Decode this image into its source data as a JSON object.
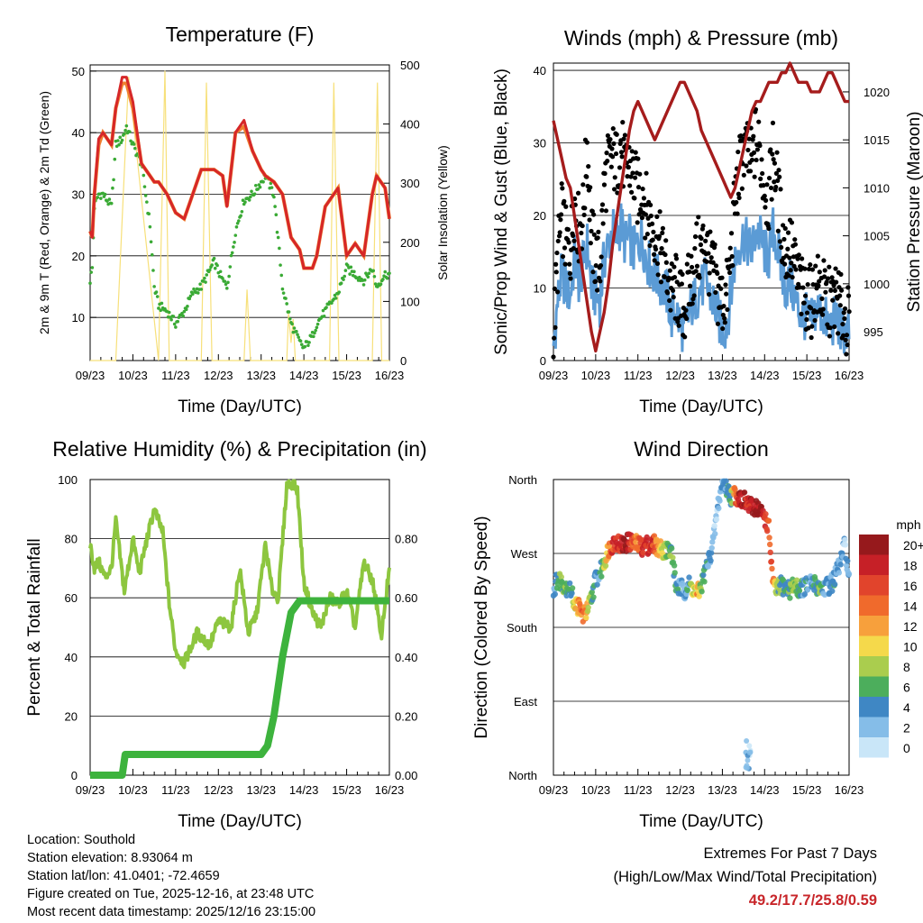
{
  "colors": {
    "temp2m": "#d62728",
    "temp9m": "#f08030",
    "dewpoint": "#3aaa35",
    "solar": "#f7e07a",
    "wind": "#5b9bd5",
    "gust": "#000000",
    "pressure": "#a51c1c",
    "rh": "#8dc63f",
    "precip": "#3db33d",
    "extreme": "#c8262a"
  },
  "days": [
    "09/23",
    "10/23",
    "11/23",
    "12/23",
    "13/23",
    "14/23",
    "15/23",
    "16/23"
  ],
  "chart_data": [
    {
      "id": "temperature",
      "type": "line",
      "title": "Temperature (F)",
      "xlabel": "Time (Day/UTC)",
      "ylabel": "2m & 9m T (Red, Orange) & 2m Td (Green)",
      "ylabel_right": "Solar Insolation (Yellow)",
      "ylim": [
        3,
        51
      ],
      "ylim_right": [
        0,
        500
      ],
      "yticks": [
        10,
        20,
        30,
        40,
        50
      ],
      "yticks_right": [
        0,
        100,
        200,
        300,
        400,
        500
      ],
      "x": [
        0.0,
        0.05,
        0.1,
        0.2,
        0.3,
        0.5,
        0.6,
        0.75,
        0.85,
        1.0,
        1.2,
        1.4,
        1.5,
        1.6,
        1.8,
        2.0,
        2.2,
        2.4,
        2.6,
        2.9,
        3.1,
        3.2,
        3.4,
        3.6,
        3.8,
        4.0,
        4.1,
        4.3,
        4.5,
        4.7,
        4.9,
        5.0,
        5.2,
        5.3,
        5.5,
        5.8,
        6.0,
        6.2,
        6.4,
        6.6,
        6.7,
        6.9,
        7.0
      ],
      "series": [
        {
          "name": "2m T",
          "values": [
            24,
            23,
            30,
            39,
            40,
            38,
            44,
            49,
            49,
            45,
            35,
            33,
            32,
            32,
            30,
            27,
            26,
            30,
            34,
            34,
            33,
            28,
            40,
            42,
            37,
            34,
            33,
            32,
            30,
            23,
            21,
            18,
            18,
            20,
            28,
            31,
            20,
            22,
            20,
            30,
            33,
            31,
            26
          ]
        },
        {
          "name": "9m T",
          "values": [
            24,
            23,
            30,
            38,
            40,
            38,
            44,
            48,
            48,
            44,
            35,
            33,
            32,
            32,
            30,
            27,
            26,
            30,
            34,
            34,
            33,
            28,
            40,
            41,
            37,
            34,
            33,
            32,
            30,
            23,
            21,
            18,
            18,
            20,
            28,
            31,
            20,
            22,
            20,
            30,
            33,
            31,
            26
          ]
        },
        {
          "name": "2m Td",
          "values": [
            16,
            18,
            28,
            30,
            30,
            28,
            38,
            39,
            41,
            38,
            35,
            25,
            15,
            12,
            11,
            9,
            11,
            14,
            15,
            19,
            16,
            15,
            24,
            29,
            30,
            32,
            33,
            30,
            15,
            9,
            6,
            5,
            7,
            9,
            11,
            14,
            18,
            17,
            16,
            18,
            15,
            17,
            17
          ]
        },
        {
          "name": "Solar",
          "x": [
            0.0,
            0.6,
            0.9,
            1.6,
            1.75,
            1.85,
            2.0,
            2.6,
            2.72,
            2.85,
            3.6,
            3.67,
            3.75,
            4.6,
            4.64,
            4.7,
            4.75,
            4.8,
            5.6,
            5.7,
            5.82,
            6.6,
            6.72,
            6.82,
            7.0
          ],
          "values": [
            0,
            0,
            480,
            0,
            490,
            0,
            0,
            0,
            470,
            0,
            0,
            120,
            0,
            0,
            80,
            30,
            70,
            0,
            0,
            470,
            0,
            0,
            470,
            0,
            0
          ]
        }
      ]
    },
    {
      "id": "winds",
      "type": "scatter",
      "title": "Winds (mph) & Pressure (mb)",
      "xlabel": "Time (Day/UTC)",
      "ylabel": "Sonic/Prop Wind & Gust (Blue, Black)",
      "ylabel_right": "Station Pressure (Maroon)",
      "ylim": [
        0,
        41
      ],
      "ylim_right": [
        992,
        1023
      ],
      "yticks": [
        0,
        10,
        20,
        30,
        40
      ],
      "yticks_right": [
        995,
        1000,
        1005,
        1010,
        1015,
        1020
      ],
      "x": [
        0.0,
        0.1,
        0.2,
        0.3,
        0.4,
        0.5,
        0.6,
        0.7,
        0.8,
        0.9,
        1.0,
        1.1,
        1.2,
        1.3,
        1.4,
        1.5,
        1.6,
        1.7,
        1.8,
        1.9,
        2.0,
        2.1,
        2.2,
        2.3,
        2.4,
        2.5,
        2.6,
        2.7,
        2.8,
        2.9,
        3.0,
        3.1,
        3.2,
        3.3,
        3.4,
        3.5,
        3.6,
        3.7,
        3.8,
        3.9,
        4.0,
        4.1,
        4.2,
        4.3,
        4.4,
        4.5,
        4.6,
        4.7,
        4.8,
        4.9,
        5.0,
        5.1,
        5.2,
        5.3,
        5.4,
        5.5,
        5.6,
        5.7,
        5.8,
        5.9,
        6.0,
        6.1,
        6.2,
        6.3,
        6.4,
        6.5,
        6.6,
        6.7,
        6.8,
        6.9,
        7.0
      ],
      "series": [
        {
          "name": "Wind",
          "values": [
            2,
            8,
            12,
            10,
            9,
            14,
            11,
            13,
            16,
            10,
            9,
            8,
            14,
            16,
            18,
            17,
            19,
            16,
            17,
            15,
            16,
            17,
            14,
            13,
            12,
            11,
            10,
            9,
            6,
            7,
            5,
            4,
            6,
            8,
            9,
            10,
            11,
            9,
            8,
            6,
            4,
            5,
            9,
            14,
            16,
            17,
            16,
            15,
            18,
            17,
            15,
            14,
            18,
            16,
            12,
            10,
            11,
            9,
            7,
            6,
            6,
            5,
            7,
            7,
            6,
            5,
            5,
            6,
            4,
            4,
            4
          ]
        },
        {
          "name": "Gust",
          "values": [
            3,
            14,
            20,
            16,
            15,
            22,
            18,
            20,
            30,
            17,
            14,
            13,
            24,
            27,
            28,
            27,
            30,
            26,
            27,
            25,
            23,
            24,
            21,
            19,
            18,
            16,
            14,
            12,
            9,
            10,
            8,
            7,
            10,
            12,
            15,
            15,
            17,
            13,
            12,
            9,
            8,
            9,
            14,
            22,
            26,
            29,
            28,
            27,
            31,
            28,
            24,
            22,
            29,
            24,
            18,
            15,
            16,
            13,
            11,
            9,
            9,
            8,
            10,
            10,
            9,
            8,
            8,
            9,
            7,
            6,
            5
          ]
        },
        {
          "name": "Pressure",
          "values": [
            1017,
            1015,
            1013,
            1011,
            1010,
            1007,
            1004,
            1001,
            998,
            995,
            993,
            995,
            997,
            1000,
            1004,
            1007,
            1010,
            1013,
            1016,
            1018,
            1019,
            1018,
            1017,
            1016,
            1015,
            1016,
            1017,
            1018,
            1019,
            1020,
            1021,
            1021,
            1020,
            1019,
            1018,
            1016,
            1015,
            1014,
            1013,
            1012,
            1011,
            1010,
            1009,
            1010,
            1012,
            1014,
            1016,
            1018,
            1019,
            1019,
            1020,
            1021,
            1021,
            1021,
            1022,
            1022,
            1023,
            1022,
            1021,
            1021,
            1021,
            1020,
            1020,
            1020,
            1021,
            1022,
            1022,
            1021,
            1020,
            1019,
            1019
          ]
        }
      ]
    },
    {
      "id": "humidity",
      "type": "line",
      "title": "Relative Humidity (%) & Precipitation (in)",
      "xlabel": "Time (Day/UTC)",
      "ylabel": "Percent & Total Rainfall",
      "ylim": [
        0,
        100
      ],
      "ylim_right": [
        0,
        1.0
      ],
      "yticks": [
        0,
        20,
        40,
        60,
        80,
        100
      ],
      "yticks_right": [
        0.0,
        0.2,
        0.4,
        0.6,
        0.8
      ],
      "ytick_labels_right": [
        "0.00",
        "0.20",
        "0.40",
        "0.60",
        "0.80"
      ],
      "x": [
        0.0,
        0.1,
        0.2,
        0.35,
        0.5,
        0.6,
        0.8,
        1.0,
        1.15,
        1.3,
        1.5,
        1.7,
        1.85,
        2.0,
        2.2,
        2.5,
        2.8,
        3.0,
        3.3,
        3.5,
        3.7,
        3.9,
        4.1,
        4.25,
        4.4,
        4.6,
        4.75,
        4.85,
        5.0,
        5.2,
        5.4,
        5.6,
        5.8,
        6.0,
        6.2,
        6.4,
        6.6,
        6.7,
        6.8,
        7.0
      ],
      "series": [
        {
          "name": "Relative Humidity",
          "values": [
            78,
            70,
            72,
            67,
            70,
            86,
            62,
            80,
            68,
            78,
            90,
            82,
            58,
            42,
            38,
            48,
            44,
            52,
            50,
            70,
            48,
            55,
            78,
            63,
            60,
            98,
            99,
            96,
            65,
            55,
            50,
            60,
            58,
            62,
            50,
            72,
            66,
            58,
            46,
            70
          ]
        },
        {
          "name": "Total Precipitation",
          "x": [
            0,
            0.75,
            0.82,
            2.0,
            3.0,
            4.0,
            4.15,
            4.3,
            4.5,
            4.7,
            4.9,
            7.0
          ],
          "values": [
            0.0,
            0.0,
            0.07,
            0.07,
            0.07,
            0.07,
            0.1,
            0.2,
            0.4,
            0.55,
            0.59,
            0.59
          ]
        }
      ]
    },
    {
      "id": "wind_direction",
      "type": "scatter",
      "title": "Wind Direction",
      "xlabel": "Time (Day/UTC)",
      "ylabel": "Direction (Colored By Speed)",
      "yticks": [
        "North",
        "West",
        "South",
        "East",
        "North"
      ],
      "colorbar_title": "mph",
      "colorbar_labels": [
        "20+",
        "18",
        "16",
        "14",
        "12",
        "10",
        "8",
        "6",
        "4",
        "2",
        "0"
      ],
      "colorbar_colors": [
        "#96191c",
        "#c62027",
        "#e1442c",
        "#f06a2c",
        "#f7a03c",
        "#f5d94b",
        "#aacd4e",
        "#4cae5c",
        "#3f87c4",
        "#85bde8",
        "#c9e6f8"
      ],
      "x": [
        0.0,
        0.1,
        0.2,
        0.3,
        0.4,
        0.5,
        0.6,
        0.7,
        0.8,
        0.9,
        1.0,
        1.1,
        1.2,
        1.3,
        1.4,
        1.5,
        1.6,
        1.7,
        1.8,
        1.9,
        2.0,
        2.1,
        2.2,
        2.3,
        2.4,
        2.5,
        2.6,
        2.7,
        2.8,
        2.9,
        3.0,
        3.1,
        3.2,
        3.3,
        3.4,
        3.5,
        3.6,
        3.7,
        3.8,
        3.9,
        4.0,
        4.1,
        4.2,
        4.3,
        4.4,
        4.5,
        4.6,
        4.7,
        4.8,
        4.9,
        5.0,
        5.1,
        5.2,
        5.3,
        5.4,
        5.5,
        5.6,
        5.7,
        5.8,
        5.9,
        6.0,
        6.1,
        6.2,
        6.3,
        6.4,
        6.5,
        6.6,
        6.7,
        6.8,
        6.9,
        7.0
      ],
      "series": [
        {
          "name": "Direction (deg)",
          "values": [
            225,
            240,
            235,
            230,
            225,
            210,
            205,
            195,
            200,
            215,
            240,
            245,
            260,
            275,
            282,
            285,
            280,
            282,
            284,
            283,
            280,
            278,
            281,
            279,
            282,
            276,
            275,
            274,
            272,
            230,
            228,
            225,
            232,
            228,
            220,
            230,
            250,
            265,
            290,
            330,
            355,
            350,
            340,
            342,
            338,
            335,
            330,
            325,
            328,
            320,
            315,
            300,
            230,
            225,
            232,
            228,
            226,
            231,
            227,
            229,
            230,
            233,
            232,
            228,
            230,
            230,
            235,
            245,
            260,
            280,
            240
          ]
        },
        {
          "name": "Speed (mph)",
          "values": [
            2,
            5,
            7,
            6,
            4,
            9,
            12,
            14,
            10,
            6,
            5,
            4,
            8,
            13,
            16,
            17,
            18,
            19,
            17,
            15,
            14,
            16,
            18,
            17,
            15,
            12,
            9,
            7,
            6,
            5,
            3,
            2,
            4,
            9,
            12,
            7,
            5,
            3,
            2,
            1,
            2,
            4,
            6,
            14,
            18,
            19,
            17,
            18,
            19,
            20,
            18,
            16,
            14,
            7,
            6,
            5,
            6,
            7,
            5,
            4,
            4,
            3,
            5,
            6,
            4,
            3,
            3,
            4,
            3,
            2,
            4
          ]
        }
      ]
    }
  ],
  "info": {
    "location": "Location: Southold",
    "elevation": "Station elevation: 8.93064 m",
    "latlon": "Station lat/lon: 41.0401; -72.4659",
    "created": "Figure created on Tue, 2025-12-16, at 23:48 UTC",
    "recent": "Most recent data timestamp: 2025/12/16 23:15:00"
  },
  "extremes": {
    "title": "Extremes For Past 7 Days",
    "subtitle": "(High/Low/Max Wind/Total Precipitation)",
    "values": "49.2/17.7/25.8/0.59"
  }
}
